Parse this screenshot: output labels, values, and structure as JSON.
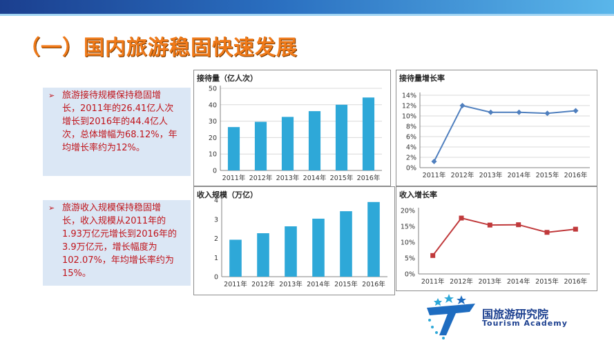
{
  "title": "（一）国内旅游稳固快速发展",
  "notes": [
    {
      "text": "旅游接待规模保持稳固增长，2011年的26.41亿人次增长到2016年的44.4亿人次，总体增幅为68.12%，年均增长率约为12%。"
    },
    {
      "text": "旅游收入规模保持稳固增长，收入规模从2011年的1.93万亿元增长到2016年的3.9万亿元，增长幅度为102.07%，年均增长率约为15%。"
    }
  ],
  "logo": {
    "name": "国旅游研究院",
    "sub": "Tourism Academy"
  },
  "chart_data": [
    {
      "type": "bar",
      "title": "接待量（亿人次）",
      "categories": [
        "2011年",
        "2012年",
        "2013年",
        "2014年",
        "2015年",
        "2016年"
      ],
      "values": [
        26.41,
        29.6,
        32.6,
        36.1,
        40.0,
        44.4
      ],
      "ylim": [
        0,
        50
      ],
      "yticks": [
        "0",
        "10",
        "20",
        "30",
        "40",
        "50"
      ],
      "grid": true,
      "color": "#2ea8d8"
    },
    {
      "type": "line",
      "title": "接待量增长率",
      "categories": [
        "2011年",
        "2012年",
        "2013年",
        "2014年",
        "2015年",
        "2016年"
      ],
      "values": [
        1.2,
        12.0,
        10.7,
        10.7,
        10.5,
        11.0
      ],
      "ylim": [
        0,
        14
      ],
      "yticks": [
        "0%",
        "2%",
        "4%",
        "6%",
        "8%",
        "10%",
        "12%",
        "14%"
      ],
      "grid": true,
      "color": "#4f7fbe"
    },
    {
      "type": "bar",
      "title": "收入规模（万亿）",
      "categories": [
        "2011年",
        "2012年",
        "2013年",
        "2014年",
        "2015年",
        "2016年"
      ],
      "values": [
        1.93,
        2.27,
        2.63,
        3.03,
        3.42,
        3.9
      ],
      "ylim": [
        0,
        4
      ],
      "yticks": [
        "0",
        "1",
        "2",
        "3",
        "4"
      ],
      "grid": false,
      "color": "#2ea8d8"
    },
    {
      "type": "line",
      "title": "收入增长率",
      "categories": [
        "2011年",
        "2012年",
        "2013年",
        "2014年",
        "2015年",
        "2016年"
      ],
      "values": [
        5.8,
        17.6,
        15.4,
        15.5,
        13.1,
        14.1
      ],
      "ylim": [
        0,
        20
      ],
      "yticks": [
        "0%",
        "5%",
        "10%",
        "15%",
        "20%"
      ],
      "grid": false,
      "color": "#c0393b"
    }
  ]
}
